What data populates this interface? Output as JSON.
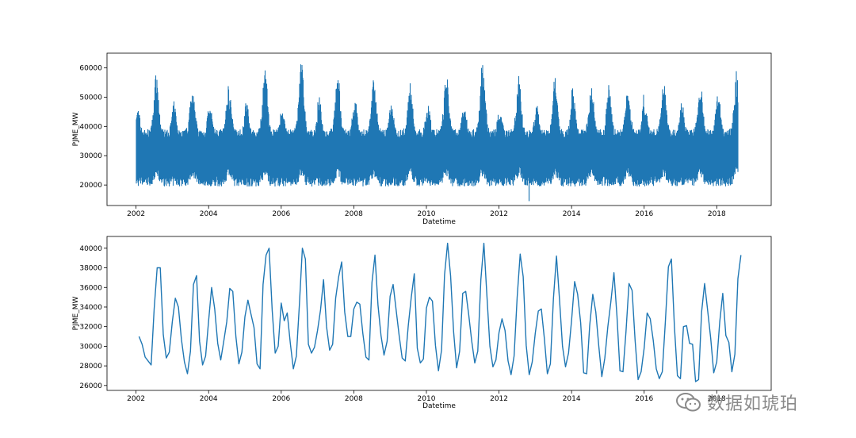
{
  "chart_data": [
    {
      "type": "line",
      "title": "",
      "xlabel": "Datetime",
      "ylabel": "PJME_MW",
      "xlim": [
        2001.2,
        2019.5
      ],
      "ylim": [
        13000,
        65000
      ],
      "x_ticks": [
        "2002",
        "2004",
        "2006",
        "2008",
        "2010",
        "2012",
        "2014",
        "2016",
        "2018"
      ],
      "y_ticks": [
        "20000",
        "30000",
        "40000",
        "50000",
        "60000"
      ],
      "color": "#1f77b4",
      "grid": false,
      "series": [
        {
          "x_start": "2002-01-01",
          "x_end": "2018-08-03",
          "frequency": "hourly",
          "base_min": 19500,
          "typical_mid": 30000,
          "annual_peaks": [
            {
              "year": 2002,
              "summer_peak": 56000,
              "winter_peak": 44500
            },
            {
              "year": 2003,
              "summer_peak": 53000,
              "winter_peak": 47000
            },
            {
              "year": 2004,
              "summer_peak": 53000,
              "winter_peak": 44000
            },
            {
              "year": 2005,
              "summer_peak": 58000,
              "winter_peak": 47000
            },
            {
              "year": 2006,
              "summer_peak": 62000,
              "winter_peak": 43000
            },
            {
              "year": 2007,
              "summer_peak": 57000,
              "winter_peak": 48000
            },
            {
              "year": 2008,
              "summer_peak": 56500,
              "winter_peak": 46000
            },
            {
              "year": 2009,
              "summer_peak": 53000,
              "winter_peak": 45500
            },
            {
              "year": 2010,
              "summer_peak": 57000,
              "winter_peak": 47000
            },
            {
              "year": 2011,
              "summer_peak": 61500,
              "winter_peak": 45500
            },
            {
              "year": 2012,
              "summer_peak": 56000,
              "winter_peak": 42500
            },
            {
              "year": 2013,
              "summer_peak": 57000,
              "winter_peak": 46000
            },
            {
              "year": 2014,
              "summer_peak": 51500,
              "winter_peak": 53000
            },
            {
              "year": 2015,
              "summer_peak": 52500,
              "winter_peak": 53000
            },
            {
              "year": 2016,
              "summer_peak": 54500,
              "winter_peak": 45000
            },
            {
              "year": 2017,
              "summer_peak": 52500,
              "winter_peak": 47000
            },
            {
              "year": 2018,
              "summer_peak": 56500,
              "winter_peak": 53000
            }
          ],
          "outlier_min": {
            "x": "2012-10-30",
            "y": 14500
          }
        }
      ]
    },
    {
      "type": "line",
      "title": "",
      "xlabel": "Datetime",
      "ylabel": "PJME_MW",
      "xlim": [
        2001.2,
        2019.5
      ],
      "ylim": [
        25500,
        41200
      ],
      "x_ticks": [
        "2002",
        "2004",
        "2006",
        "2008",
        "2010",
        "2012",
        "2014",
        "2016",
        "2018"
      ],
      "y_ticks": [
        "26000",
        "28000",
        "30000",
        "32000",
        "34000",
        "36000",
        "38000",
        "40000"
      ],
      "color": "#1f77b4",
      "grid": false,
      "series": [
        {
          "frequency": "monthly mean",
          "x_start": "2002-01",
          "values": [
            31000,
            30200,
            28900,
            28500,
            28100,
            33800,
            38000,
            38000,
            31200,
            28800,
            29400,
            32500,
            34900,
            34000,
            30700,
            28400,
            27200,
            29500,
            36300,
            37200,
            30500,
            28100,
            29000,
            32600,
            36000,
            33800,
            30300,
            28600,
            30500,
            32500,
            35900,
            35600,
            31000,
            28200,
            29400,
            33000,
            34700,
            33300,
            31900,
            28200,
            27700,
            36300,
            39300,
            40000,
            33700,
            29300,
            30000,
            34400,
            32600,
            33400,
            30300,
            27700,
            29000,
            34200,
            40000,
            38900,
            30200,
            29300,
            29900,
            31600,
            33700,
            36800,
            32000,
            29600,
            30200,
            34900,
            37100,
            38600,
            33500,
            31000,
            31000,
            33800,
            34500,
            34300,
            31300,
            28900,
            28600,
            36500,
            39300,
            34200,
            31100,
            29100,
            30500,
            35100,
            36300,
            33700,
            31100,
            28800,
            28500,
            32100,
            35000,
            37400,
            29800,
            28300,
            28700,
            33900,
            35000,
            34600,
            30100,
            27500,
            29600,
            37300,
            40500,
            37200,
            31500,
            27800,
            29500,
            35400,
            35600,
            33200,
            30500,
            28300,
            29500,
            36800,
            40500,
            35200,
            30000,
            27900,
            28600,
            31400,
            32800,
            31600,
            28500,
            27100,
            29000,
            35000,
            39400,
            37100,
            30100,
            27100,
            28400,
            31300,
            33600,
            33800,
            30800,
            27200,
            28200,
            34800,
            39200,
            34800,
            30000,
            27900,
            29300,
            32600,
            36600,
            35300,
            32400,
            27300,
            27200,
            32100,
            35300,
            33500,
            30000,
            26900,
            28800,
            32000,
            34600,
            37500,
            33100,
            27500,
            27400,
            31500,
            36400,
            35700,
            30600,
            26600,
            27400,
            29800,
            33400,
            32800,
            30600,
            27700,
            26700,
            27400,
            32400,
            38100,
            38900,
            32000,
            27000,
            26700,
            32000,
            32100,
            30300,
            30200,
            26400,
            26600,
            33500,
            36400,
            33600,
            30800,
            27300,
            28400,
            32500,
            35400,
            31100,
            30400,
            27400,
            29200,
            36900,
            39300
          ]
        }
      ]
    }
  ],
  "watermark": {
    "text": "数据如琥珀",
    "icon": "wechat-icon"
  }
}
